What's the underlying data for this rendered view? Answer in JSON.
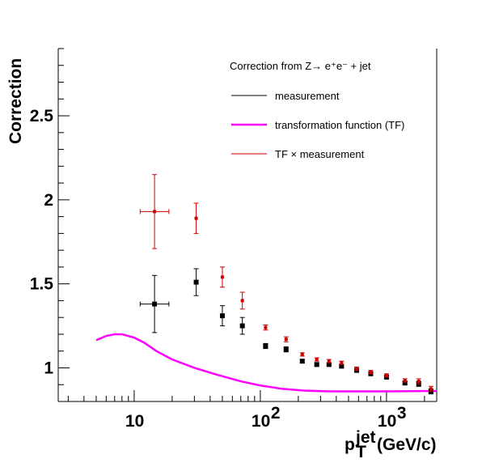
{
  "chart_data": {
    "type": "scatter",
    "xscale": "log",
    "xlim": [
      2.5,
      2500
    ],
    "ylim": [
      0.8,
      2.9
    ],
    "xlabel": {
      "main": "p",
      "sub": "T",
      "sup": "jet",
      "units": " (GeV/c)"
    },
    "ylabel": "Correction",
    "x_ticks": [
      {
        "value": 10,
        "label": "10"
      },
      {
        "value": 100,
        "label": "10",
        "exp": "2"
      },
      {
        "value": 1000,
        "label": "10",
        "exp": "3"
      }
    ],
    "y_ticks": [
      {
        "value": 1,
        "label": "1"
      },
      {
        "value": 1.5,
        "label": "1.5"
      },
      {
        "value": 2,
        "label": "2"
      },
      {
        "value": 2.5,
        "label": "2.5"
      }
    ],
    "legend": {
      "title": "Correction from Z→ e⁺e⁻ + jet",
      "entries": [
        {
          "label": "measurement",
          "color": "#000000",
          "style": "error-bar"
        },
        {
          "label": "transformation function (TF)",
          "color": "#ff00ff",
          "style": "line"
        },
        {
          "label": "TF × measurement",
          "color": "#cc0000",
          "style": "error-bar"
        }
      ]
    },
    "series": [
      {
        "name": "measurement",
        "color": "#000000",
        "marker": "square",
        "points": [
          {
            "x": 14.5,
            "y": 1.38,
            "yerr": 0.17,
            "xerr": [
              1.3,
              1.3
            ]
          },
          {
            "x": 31,
            "y": 1.51,
            "yerr": 0.08
          },
          {
            "x": 50,
            "y": 1.31,
            "yerr": 0.06
          },
          {
            "x": 72,
            "y": 1.25,
            "yerr": 0.05
          },
          {
            "x": 110,
            "y": 1.13,
            "yerr": 0.015
          },
          {
            "x": 160,
            "y": 1.11,
            "yerr": 0.015
          },
          {
            "x": 215,
            "y": 1.04,
            "yerr": 0.01
          },
          {
            "x": 280,
            "y": 1.02,
            "yerr": 0.01
          },
          {
            "x": 350,
            "y": 1.02,
            "yerr": 0.01
          },
          {
            "x": 440,
            "y": 1.01,
            "yerr": 0.01
          },
          {
            "x": 580,
            "y": 0.985,
            "yerr": 0.01
          },
          {
            "x": 750,
            "y": 0.965,
            "yerr": 0.01
          },
          {
            "x": 1000,
            "y": 0.945,
            "yerr": 0.01
          },
          {
            "x": 1400,
            "y": 0.91,
            "yerr": 0.01
          },
          {
            "x": 1800,
            "y": 0.905,
            "yerr": 0.015
          },
          {
            "x": 2250,
            "y": 0.86,
            "yerr": 0.015
          }
        ]
      },
      {
        "name": "TF × measurement",
        "color": "#cc0000",
        "marker": "errorbar",
        "points": [
          {
            "x": 14.5,
            "y": 1.93,
            "yerr": 0.22,
            "xerr": [
              1.3,
              1.3
            ]
          },
          {
            "x": 31,
            "y": 1.89,
            "yerr": 0.09
          },
          {
            "x": 50,
            "y": 1.54,
            "yerr": 0.06
          },
          {
            "x": 72,
            "y": 1.4,
            "yerr": 0.05
          },
          {
            "x": 110,
            "y": 1.24,
            "yerr": 0.015
          },
          {
            "x": 160,
            "y": 1.17,
            "yerr": 0.015
          },
          {
            "x": 215,
            "y": 1.08,
            "yerr": 0.01
          },
          {
            "x": 280,
            "y": 1.05,
            "yerr": 0.01
          },
          {
            "x": 350,
            "y": 1.04,
            "yerr": 0.01
          },
          {
            "x": 440,
            "y": 1.03,
            "yerr": 0.01
          },
          {
            "x": 580,
            "y": 0.995,
            "yerr": 0.01
          },
          {
            "x": 750,
            "y": 0.975,
            "yerr": 0.01
          },
          {
            "x": 1000,
            "y": 0.955,
            "yerr": 0.01
          },
          {
            "x": 1400,
            "y": 0.925,
            "yerr": 0.01
          },
          {
            "x": 1800,
            "y": 0.92,
            "yerr": 0.015
          },
          {
            "x": 2250,
            "y": 0.875,
            "yerr": 0.015
          }
        ]
      },
      {
        "name": "transformation function (TF)",
        "color": "#ff00ff",
        "marker": "line",
        "points": [
          {
            "x": 5,
            "y": 1.165
          },
          {
            "x": 6,
            "y": 1.19
          },
          {
            "x": 7,
            "y": 1.2
          },
          {
            "x": 8,
            "y": 1.2
          },
          {
            "x": 10,
            "y": 1.18
          },
          {
            "x": 12,
            "y": 1.15
          },
          {
            "x": 15,
            "y": 1.1
          },
          {
            "x": 20,
            "y": 1.05
          },
          {
            "x": 30,
            "y": 1.0
          },
          {
            "x": 45,
            "y": 0.96
          },
          {
            "x": 70,
            "y": 0.92
          },
          {
            "x": 100,
            "y": 0.895
          },
          {
            "x": 150,
            "y": 0.875
          },
          {
            "x": 220,
            "y": 0.865
          },
          {
            "x": 350,
            "y": 0.86
          },
          {
            "x": 500,
            "y": 0.86
          },
          {
            "x": 1000,
            "y": 0.86
          },
          {
            "x": 2000,
            "y": 0.862
          },
          {
            "x": 2500,
            "y": 0.862
          }
        ]
      }
    ]
  }
}
